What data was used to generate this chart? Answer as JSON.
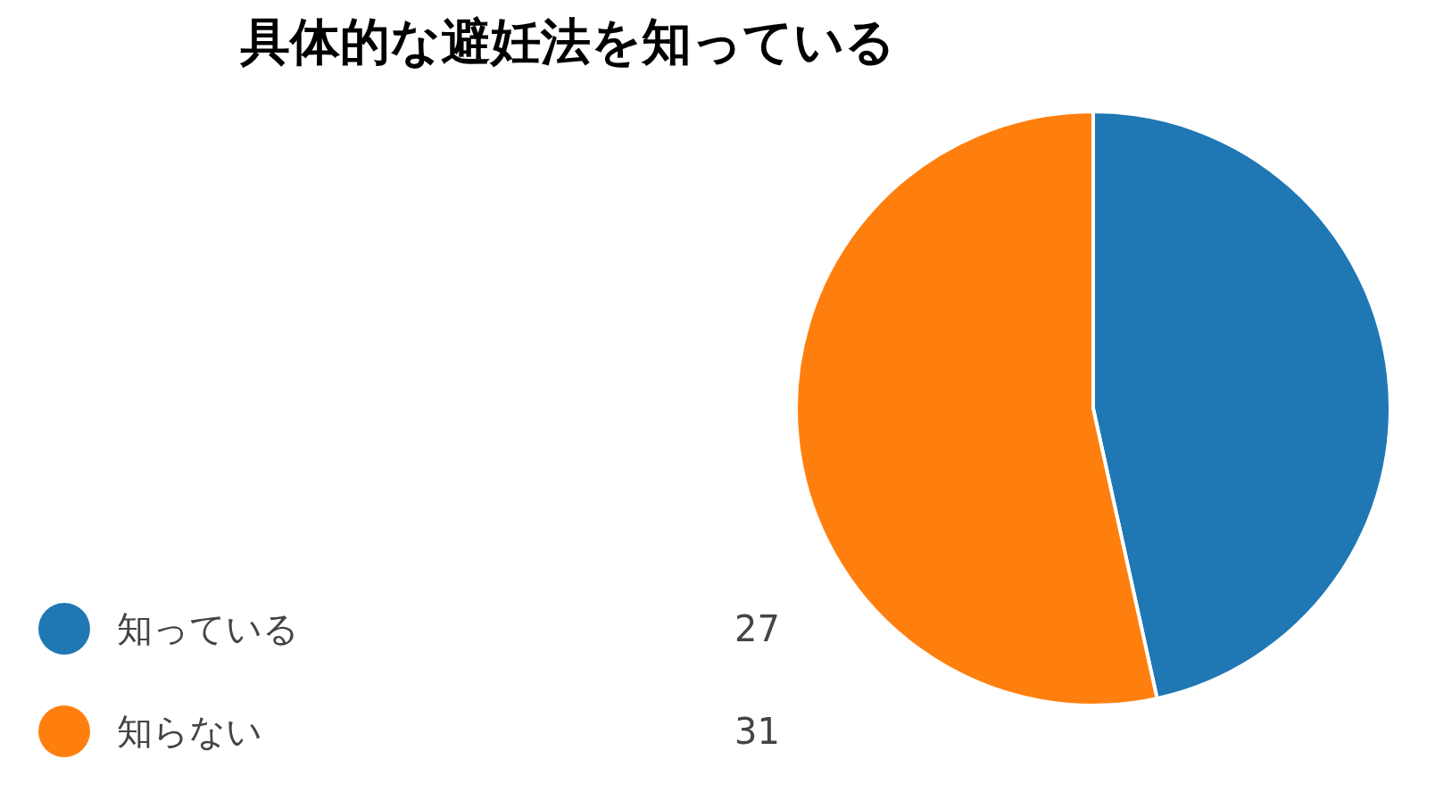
{
  "chart_data": {
    "type": "pie",
    "title": "具体的な避妊法を知っている",
    "categories": [
      "知っている",
      "知らない"
    ],
    "values": [
      27,
      31
    ],
    "colors": [
      "#1f77b4",
      "#ff7f0e"
    ],
    "legend": "bottom left",
    "data_labels": true
  }
}
